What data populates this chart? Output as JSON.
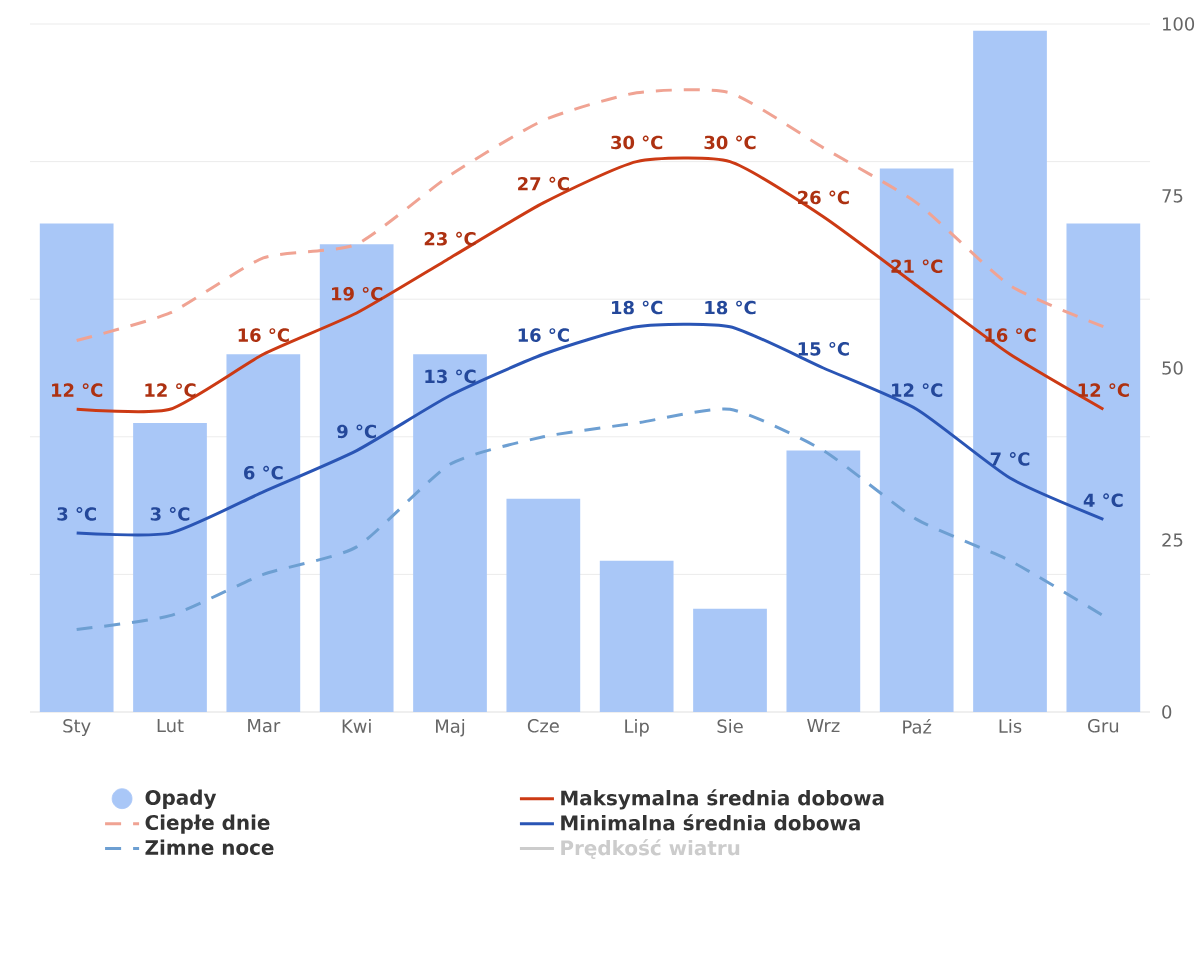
{
  "chart_data": {
    "type": "line",
    "categories": [
      "Sty",
      "Lut",
      "Mar",
      "Kwi",
      "Maj",
      "Cze",
      "Lip",
      "Sie",
      "Wrz",
      "Paź",
      "Lis",
      "Gru"
    ],
    "series": [
      {
        "name": "Opady",
        "type": "bar",
        "axis": "y2",
        "color": "#a9c7f7",
        "values": [
          71,
          42,
          52,
          68,
          52,
          31,
          22,
          15,
          38,
          79,
          99,
          71
        ]
      },
      {
        "name": "Ciepłe dnie",
        "line_style": "dashed",
        "color": "#f0a393",
        "values": [
          17,
          19,
          23,
          24,
          29,
          33,
          35,
          35,
          31,
          27,
          21,
          18
        ]
      },
      {
        "name": "Zimne noce",
        "line_style": "dashed",
        "color": "#6d9fd2",
        "values": [
          -4,
          -3,
          0,
          2,
          8,
          10,
          11,
          12,
          9,
          4,
          1,
          -3
        ]
      },
      {
        "name": "Maksymalna średnia dobowa",
        "line_style": "solid",
        "color": "#cc3a14",
        "values": [
          12,
          12,
          16,
          19,
          23,
          27,
          30,
          30,
          26,
          21,
          16,
          12
        ],
        "value_labels": [
          "12 °C",
          "12 °C",
          "16 °C",
          "19 °C",
          "23 °C",
          "27 °C",
          "30 °C",
          "30 °C",
          "26 °C",
          "21 °C",
          "16 °C",
          "12 °C"
        ]
      },
      {
        "name": "Minimalna średnia dobowa",
        "line_style": "solid",
        "color": "#2a55b5",
        "values": [
          3,
          3,
          6,
          9,
          13,
          16,
          18,
          18,
          15,
          12,
          7,
          4
        ],
        "value_labels": [
          "3 °C",
          "3 °C",
          "6 °C",
          "9 °C",
          "13 °C",
          "16 °C",
          "18 °C",
          "18 °C",
          "15 °C",
          "12 °C",
          "7 °C",
          "4 °C"
        ]
      },
      {
        "name": "Prędkość wiatru",
        "line_style": "solid",
        "color": "#cccccc",
        "values": [
          null,
          null,
          null,
          null,
          null,
          null,
          null,
          null,
          null,
          null,
          null,
          null
        ]
      }
    ],
    "ylim": [
      -10,
      40
    ],
    "yticks": [
      {
        "value": -10,
        "label": null
      },
      {
        "value": 0,
        "label": null
      },
      {
        "value": 10,
        "label": null
      },
      {
        "value": 20,
        "label": null
      },
      {
        "value": 30,
        "label": null
      },
      {
        "value": 40,
        "label": null
      }
    ],
    "y2lim": [
      0,
      100
    ],
    "y2ticks": [
      0,
      25,
      50,
      75,
      100
    ],
    "grid": "y",
    "legend": "bottom"
  }
}
